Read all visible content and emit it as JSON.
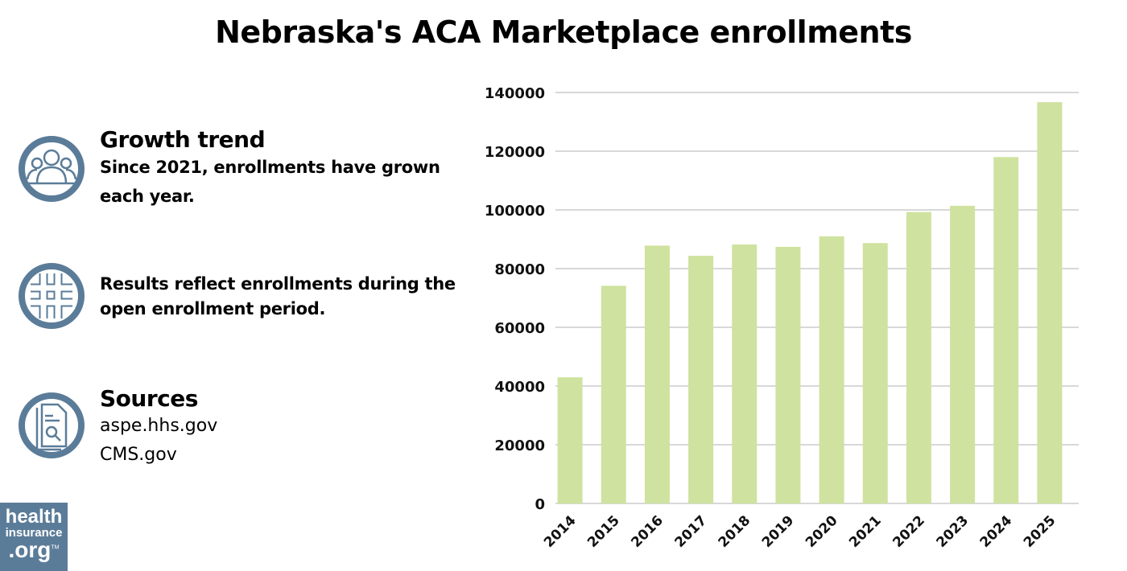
{
  "title": "Nebraska's ACA Marketplace enrollments",
  "sidebar": {
    "growth": {
      "heading": "Growth trend",
      "line1": "Since 2021, enrollments have grown",
      "line2": "each year.",
      "icon": "people-group-icon"
    },
    "note": {
      "line1": "Results reflect enrollments during the",
      "line2": "open enrollment period.",
      "icon": "hashtag-icon"
    },
    "sources": {
      "heading": "Sources",
      "items": [
        "aspe.hhs.gov",
        "CMS.gov"
      ],
      "icon": "document-search-icon"
    }
  },
  "logo": {
    "line1": "health",
    "line2": "insurance",
    "line3": ".org",
    "tm": "TM"
  },
  "colors": {
    "bar": "#cfe29f",
    "icon": "#5b7c99",
    "grid": "#cccccc"
  },
  "chart_data": {
    "type": "bar",
    "title": "Nebraska's ACA Marketplace enrollments",
    "categories": [
      "2014",
      "2015",
      "2016",
      "2017",
      "2018",
      "2019",
      "2020",
      "2021",
      "2022",
      "2023",
      "2024",
      "2025"
    ],
    "values": [
      42975,
      74152,
      87835,
      84371,
      88213,
      87416,
      91000,
      88688,
      99276,
      101405,
      118000,
      136700
    ],
    "ylim": [
      0,
      140000
    ],
    "yticks": [
      "0",
      "20000",
      "40000",
      "60000",
      "80000",
      "100000",
      "120000",
      "140000"
    ],
    "grid": true,
    "xlabel": "",
    "ylabel": ""
  }
}
